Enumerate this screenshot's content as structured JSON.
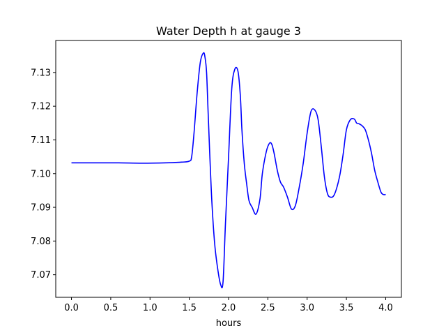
{
  "chart_data": {
    "type": "line",
    "title": "Water Depth h at gauge 3",
    "xlabel": "hours",
    "ylabel": "",
    "xlim": [
      -0.2,
      4.2
    ],
    "ylim": [
      7.0633,
      7.1395
    ],
    "grid": false,
    "x_ticks": [
      0.0,
      0.5,
      1.0,
      1.5,
      2.0,
      2.5,
      3.0,
      3.5,
      4.0
    ],
    "x_tick_labels": [
      "0.0",
      "0.5",
      "1.0",
      "1.5",
      "2.0",
      "2.5",
      "3.0",
      "3.5",
      "4.0"
    ],
    "y_ticks": [
      7.07,
      7.08,
      7.09,
      7.1,
      7.11,
      7.12,
      7.13
    ],
    "y_tick_labels": [
      "7.07",
      "7.08",
      "7.09",
      "7.10",
      "7.11",
      "7.12",
      "7.13"
    ],
    "series": [
      {
        "color": "#0000ff",
        "x": [
          0.0,
          0.3,
          0.6,
          0.9,
          1.2,
          1.4,
          1.5,
          1.53,
          1.56,
          1.6,
          1.64,
          1.68,
          1.7,
          1.72,
          1.74,
          1.78,
          1.82,
          1.86,
          1.9,
          1.93,
          1.96,
          2.0,
          2.04,
          2.08,
          2.12,
          2.15,
          2.17,
          2.2,
          2.23,
          2.26,
          2.3,
          2.35,
          2.4,
          2.43,
          2.48,
          2.52,
          2.55,
          2.58,
          2.62,
          2.66,
          2.7,
          2.75,
          2.8,
          2.85,
          2.9,
          2.95,
          3.0,
          3.05,
          3.1,
          3.14,
          3.18,
          3.22,
          3.26,
          3.3,
          3.34,
          3.38,
          3.42,
          3.46,
          3.5,
          3.55,
          3.6,
          3.63,
          3.66,
          3.7,
          3.74,
          3.78,
          3.82,
          3.86,
          3.9,
          3.94,
          3.97,
          4.0
        ],
        "y": [
          7.1032,
          7.1032,
          7.1032,
          7.1031,
          7.1032,
          7.1034,
          7.1037,
          7.105,
          7.112,
          7.124,
          7.133,
          7.1358,
          7.1345,
          7.13,
          7.118,
          7.095,
          7.08,
          7.072,
          7.067,
          7.068,
          7.085,
          7.105,
          7.125,
          7.131,
          7.1303,
          7.123,
          7.113,
          7.103,
          7.097,
          7.092,
          7.09,
          7.088,
          7.0925,
          7.1,
          7.1065,
          7.109,
          7.1087,
          7.106,
          7.101,
          7.0975,
          7.096,
          7.093,
          7.0895,
          7.0905,
          7.096,
          7.103,
          7.112,
          7.1185,
          7.1188,
          7.116,
          7.108,
          7.099,
          7.094,
          7.093,
          7.0935,
          7.096,
          7.1,
          7.106,
          7.113,
          7.116,
          7.1162,
          7.115,
          7.1148,
          7.1142,
          7.113,
          7.11,
          7.106,
          7.101,
          7.0975,
          7.0945,
          7.0938,
          7.0938
        ]
      }
    ]
  }
}
